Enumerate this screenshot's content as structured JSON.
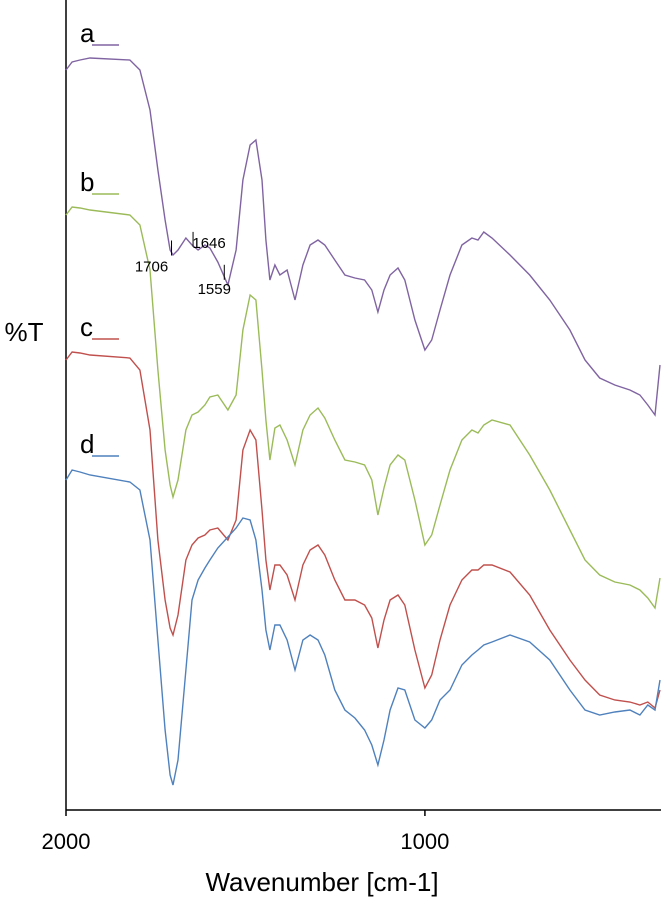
{
  "chart_data": {
    "type": "line",
    "x_label": "Wavenumber [cm-1]",
    "y_label": "%T",
    "xlim": [
      2000,
      345
    ],
    "ylim": [
      0,
      780
    ],
    "xticks": [
      2000,
      1000
    ],
    "x": [
      2000,
      1983,
      1961,
      1933,
      1822,
      1794,
      1766,
      1744,
      1724,
      1710,
      1702,
      1688,
      1666,
      1649,
      1632,
      1613,
      1599,
      1577,
      1549,
      1526,
      1507,
      1487,
      1471,
      1454,
      1443,
      1432,
      1418,
      1404,
      1384,
      1362,
      1340,
      1320,
      1298,
      1279,
      1251,
      1223,
      1195,
      1168,
      1148,
      1131,
      1114,
      1097,
      1075,
      1056,
      1028,
      1000,
      981,
      958,
      930,
      897,
      869,
      852,
      836,
      813,
      763,
      708,
      652,
      596,
      554,
      513,
      471,
      429,
      401,
      379,
      359,
      345
    ],
    "series": [
      {
        "name": "a",
        "color": "#8064a2",
        "values": [
          740,
          748,
          750,
          752,
          750,
          740,
          700,
          640,
          590,
          560,
          555,
          560,
          572,
          565,
          560,
          565,
          562,
          548,
          525,
          560,
          630,
          665,
          670,
          630,
          570,
          530,
          545,
          535,
          540,
          510,
          545,
          565,
          570,
          565,
          550,
          535,
          532,
          530,
          520,
          498,
          520,
          535,
          542,
          530,
          490,
          460,
          470,
          500,
          535,
          565,
          572,
          570,
          578,
          572,
          555,
          535,
          510,
          480,
          450,
          432,
          425,
          420,
          415,
          405,
          395,
          445
        ]
      },
      {
        "name": "b",
        "color": "#9bbb59",
        "values": [
          595,
          603,
          602,
          600,
          595,
          585,
          540,
          440,
          360,
          325,
          313,
          330,
          380,
          395,
          398,
          405,
          413,
          415,
          400,
          415,
          480,
          515,
          510,
          440,
          390,
          350,
          382,
          385,
          370,
          345,
          380,
          395,
          402,
          392,
          370,
          350,
          348,
          345,
          330,
          295,
          322,
          345,
          355,
          350,
          310,
          265,
          275,
          305,
          340,
          370,
          380,
          377,
          385,
          390,
          385,
          355,
          320,
          280,
          250,
          235,
          228,
          225,
          220,
          212,
          202,
          232
        ]
      },
      {
        "name": "c",
        "color": "#c0504d",
        "values": [
          450,
          458,
          457,
          455,
          452,
          440,
          380,
          270,
          210,
          182,
          175,
          195,
          250,
          265,
          272,
          275,
          280,
          282,
          270,
          290,
          360,
          380,
          370,
          300,
          250,
          220,
          245,
          245,
          235,
          210,
          245,
          260,
          265,
          255,
          230,
          210,
          210,
          205,
          192,
          162,
          190,
          210,
          215,
          205,
          160,
          122,
          135,
          170,
          205,
          230,
          240,
          240,
          245,
          245,
          238,
          215,
          180,
          150,
          130,
          115,
          110,
          108,
          105,
          108,
          102,
          120
        ]
      },
      {
        "name": "d",
        "color": "#4f81bd",
        "values": [
          330,
          340,
          338,
          335,
          328,
          320,
          270,
          170,
          80,
          35,
          25,
          50,
          140,
          210,
          230,
          242,
          250,
          262,
          273,
          282,
          292,
          290,
          270,
          220,
          180,
          160,
          185,
          185,
          170,
          140,
          170,
          175,
          170,
          155,
          120,
          100,
          92,
          80,
          65,
          45,
          70,
          100,
          122,
          120,
          90,
          82,
          90,
          110,
          120,
          145,
          155,
          160,
          165,
          168,
          175,
          168,
          150,
          120,
          100,
          95,
          98,
          100,
          95,
          105,
          100,
          130
        ]
      }
    ],
    "annotations": [
      1706,
      1646,
      1559
    ]
  }
}
